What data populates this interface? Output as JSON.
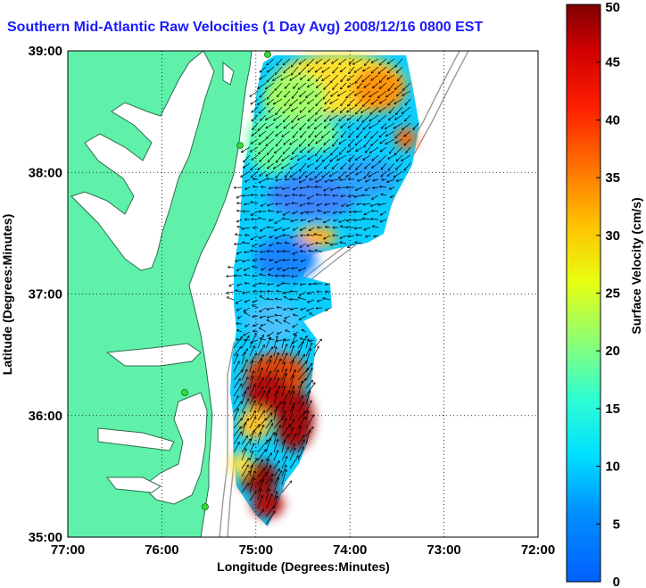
{
  "title": "Southern Mid-Atlantic Raw Velocities (1 Day Avg) 2008/12/16 0800 EST",
  "x_axis": {
    "label": "Longitude (Degrees:Minutes)",
    "ticks": [
      "77:00",
      "76:00",
      "75:00",
      "74:00",
      "73:00",
      "72:00"
    ],
    "range": [
      -77,
      -72
    ]
  },
  "y_axis": {
    "label": "Latitude (Degrees:Minutes)",
    "ticks": [
      "39:00",
      "38:00",
      "37:00",
      "36:00",
      "35:00"
    ],
    "range": [
      35,
      39
    ]
  },
  "colorbar": {
    "label": "Surface Velocity (cm/s)",
    "ticks": [
      "0",
      "5",
      "10",
      "15",
      "20",
      "25",
      "30",
      "35",
      "40",
      "45",
      "50"
    ],
    "range": [
      0,
      50
    ],
    "colormap": "jet"
  },
  "colors": {
    "land": "#5ff0aa",
    "coastline": "#2e6e4e",
    "grid": "#000000",
    "bathymetry": "#9a9a9a",
    "station_marker": "#33dd33",
    "title": "#1a1aff"
  },
  "grid": "dotted"
}
